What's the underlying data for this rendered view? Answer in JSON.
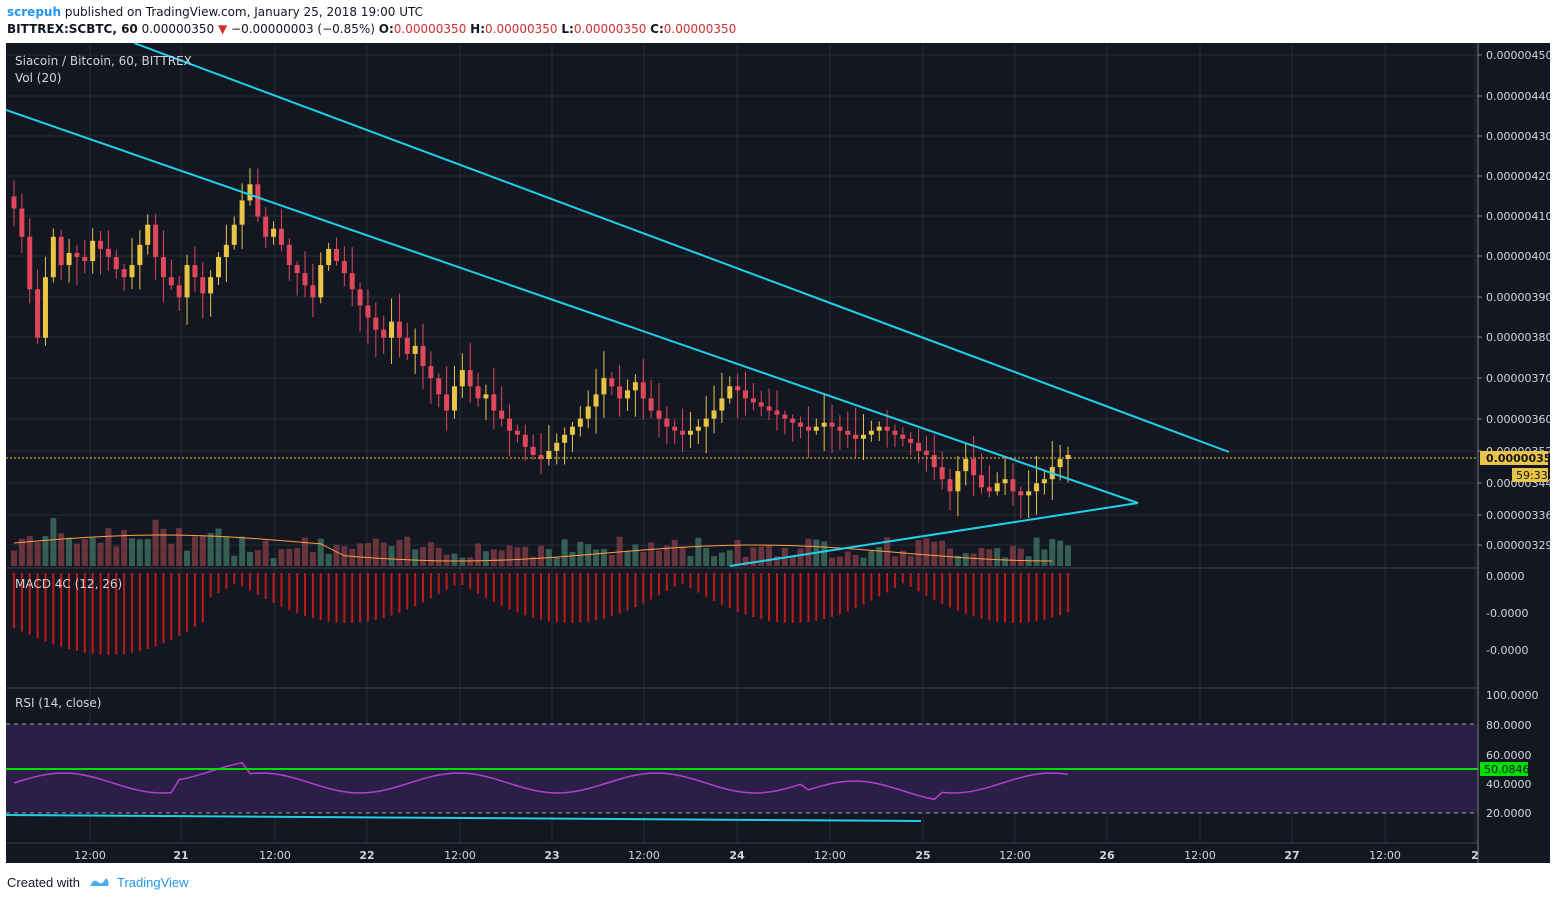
{
  "header": {
    "author": "screpuh",
    "published": "published on TradingView.com, January 25, 2018 19:00 UTC",
    "symbol": "BITTREX:SCBTC, 60",
    "price": "0.00000350",
    "change": "−0.00000003 (−0.85%)",
    "o_label": "O:",
    "o_val": "0.00000350",
    "h_label": "H:",
    "h_val": "0.00000350",
    "l_label": "L:",
    "l_val": "0.00000350",
    "c_label": "C:",
    "c_val": "0.00000350"
  },
  "main_pane": {
    "title": "Siacoin / Bitcoin, 60, BITTREX",
    "volume_label": "Vol (20)",
    "price_ticks": [
      "0.00000450",
      "0.00000440",
      "0.00000430",
      "0.00000420",
      "0.00000410",
      "0.00000400",
      "0.00000390",
      "0.00000380",
      "0.00000370",
      "0.00000360",
      "0.00000352",
      "0.00000344",
      "0.00000336",
      "0.00000329"
    ],
    "last_price_label": "0.00000350",
    "countdown_label": "59:33"
  },
  "macd_pane": {
    "title": "MACD 4C (12, 26)",
    "ticks": [
      "0.0000",
      "-0.0000",
      "-0.0000"
    ]
  },
  "rsi_pane": {
    "title": "RSI (14, close)",
    "ticks": [
      "100.0000",
      "80.0000",
      "60.0000",
      "40.0000",
      "20.0000"
    ],
    "current_value": "50.0846"
  },
  "time_axis": {
    "labels": [
      "12:00",
      "21",
      "12:00",
      "22",
      "12:00",
      "23",
      "12:00",
      "24",
      "12:00",
      "25",
      "12:00",
      "26",
      "12:00",
      "27",
      "12:00",
      "2"
    ]
  },
  "footer": {
    "created_with": "Created with",
    "brand": "TradingView"
  },
  "colors": {
    "background": "#131722",
    "candle_up": "#e8c447",
    "candle_down": "#e0475a",
    "trendline": "#1fd0e8",
    "rsi_line": "#b43fd0",
    "rsi_level": "#00e000",
    "macd_hist": "#c21818"
  },
  "chart_data": {
    "type": "candlestick",
    "series": [
      {
        "name": "Siacoin / Bitcoin",
        "values": [
          412,
          405,
          392,
          380,
          395,
          405,
          398,
          401,
          400,
          399,
          404,
          402,
          400,
          397,
          395,
          398,
          403,
          408,
          400,
          395,
          393,
          390,
          398,
          395,
          391,
          395,
          400,
          403,
          408,
          414,
          418,
          410,
          405,
          407,
          403,
          398,
          396,
          393,
          390,
          398,
          402,
          399,
          396,
          392,
          388,
          385,
          382,
          380,
          384,
          380,
          376,
          378,
          373,
          370,
          366,
          362,
          368,
          372,
          368,
          365,
          366,
          362,
          360,
          357,
          356,
          353,
          351,
          350,
          352,
          354,
          356,
          358,
          360,
          363,
          366,
          370,
          368,
          365,
          367,
          369,
          365,
          362,
          360,
          358,
          357,
          356,
          357,
          358,
          360,
          362,
          365,
          368,
          367,
          365,
          364,
          363,
          362,
          361,
          360,
          359,
          358,
          357,
          358,
          359,
          358,
          357,
          356,
          355,
          356,
          357,
          358,
          357,
          356,
          355,
          354,
          352,
          351,
          348,
          345,
          342,
          347,
          350,
          346,
          343,
          342,
          344,
          345,
          342,
          341,
          342,
          344,
          345,
          348,
          350,
          351
        ]
      }
    ]
  }
}
